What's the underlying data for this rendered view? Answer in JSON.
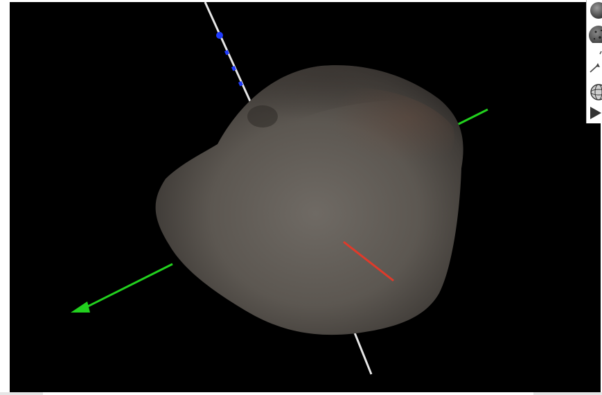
{
  "viewer": {
    "background": "#000000",
    "model": "asteroid-shape-model",
    "axes": {
      "x_color": "#e03a2a",
      "y_color": "#22d11e",
      "z_color": "#e6e6e6",
      "z_marker_color": "#1f3bff"
    }
  },
  "toolbar": {
    "tools": [
      {
        "name": "shaded-view",
        "icon": "sphere-smooth-icon"
      },
      {
        "name": "textured-view",
        "icon": "sphere-textured-icon"
      },
      {
        "name": "show-axes",
        "icon": "axis-arrow-icon"
      },
      {
        "name": "wireframe-view",
        "icon": "sphere-wireframe-icon"
      },
      {
        "name": "play-rotation",
        "icon": "play-icon"
      }
    ]
  }
}
